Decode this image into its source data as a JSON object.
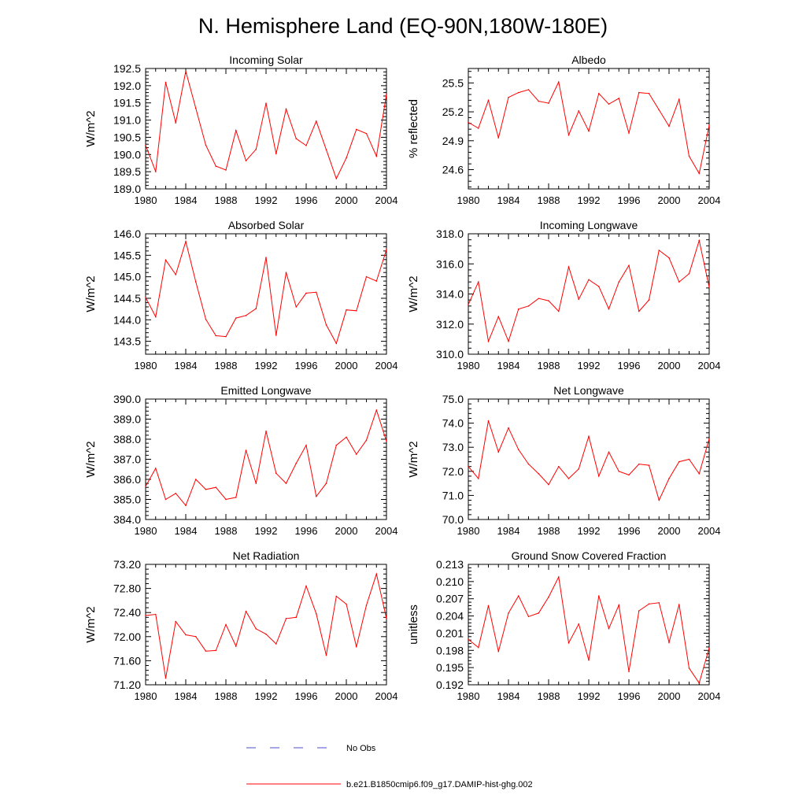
{
  "figure": {
    "title": "N. Hemisphere Land (EQ-90N,180W-180E)"
  },
  "legend": {
    "items": [
      {
        "label": "No Obs",
        "color": "#4d4dcc",
        "style": "dashed"
      },
      {
        "label": "b.e21.B1850cmip6.f09_g17.DAMIP-hist-ghg.002",
        "color": "#ff0000",
        "style": "solid"
      }
    ]
  },
  "chart_data": [
    {
      "type": "line",
      "title": "Incoming Solar",
      "xlabel": "",
      "ylabel": "W/m^2",
      "xlim": [
        1980,
        2004
      ],
      "ylim": [
        189.0,
        192.5
      ],
      "xticks": [
        1980,
        1984,
        1988,
        1992,
        1996,
        2000,
        2004
      ],
      "yticks": [
        "189.0",
        "189.5",
        "190.0",
        "190.5",
        "191.0",
        "191.5",
        "192.0",
        "192.5"
      ],
      "x": [
        1980,
        1981,
        1982,
        1983,
        1984,
        1985,
        1986,
        1987,
        1988,
        1989,
        1990,
        1991,
        1992,
        1993,
        1994,
        1995,
        1996,
        1997,
        1998,
        1999,
        2000,
        2001,
        2002,
        2003,
        2004
      ],
      "series": [
        {
          "color": "#ff0000",
          "values": [
            190.27,
            189.5,
            192.1,
            190.92,
            192.42,
            191.34,
            190.27,
            189.66,
            189.55,
            190.7,
            189.82,
            190.15,
            191.49,
            190.02,
            191.32,
            190.46,
            190.26,
            190.97,
            190.14,
            189.3,
            189.9,
            190.73,
            190.61,
            189.95,
            191.75
          ]
        }
      ]
    },
    {
      "type": "line",
      "title": "Albedo",
      "xlabel": "",
      "ylabel": "% reflected",
      "xlim": [
        1980,
        2004
      ],
      "ylim": [
        24.4,
        25.65
      ],
      "xticks": [
        1980,
        1984,
        1988,
        1992,
        1996,
        2000,
        2004
      ],
      "yticks": [
        "24.6",
        "24.9",
        "25.2",
        "25.5"
      ],
      "x": [
        1980,
        1981,
        1982,
        1983,
        1984,
        1985,
        1986,
        1987,
        1988,
        1989,
        1990,
        1991,
        1992,
        1993,
        1994,
        1995,
        1996,
        1997,
        1998,
        1999,
        2000,
        2001,
        2002,
        2003,
        2004
      ],
      "series": [
        {
          "color": "#ff0000",
          "values": [
            25.09,
            25.03,
            25.32,
            24.93,
            25.35,
            25.4,
            25.43,
            25.31,
            25.29,
            25.51,
            24.96,
            25.21,
            25.0,
            25.39,
            25.28,
            25.34,
            24.98,
            25.4,
            25.39,
            25.22,
            25.05,
            25.33,
            24.74,
            24.56,
            25.06
          ]
        }
      ]
    },
    {
      "type": "line",
      "title": "Absorbed Solar",
      "xlabel": "",
      "ylabel": "W/m^2",
      "xlim": [
        1980,
        2004
      ],
      "ylim": [
        143.2,
        146.0
      ],
      "xticks": [
        1980,
        1984,
        1988,
        1992,
        1996,
        2000,
        2004
      ],
      "yticks": [
        "143.5",
        "144.0",
        "144.5",
        "145.0",
        "145.5",
        "146.0"
      ],
      "x": [
        1980,
        1981,
        1982,
        1983,
        1984,
        1985,
        1986,
        1987,
        1988,
        1989,
        1990,
        1991,
        1992,
        1993,
        1994,
        1995,
        1996,
        1997,
        1998,
        1999,
        2000,
        2001,
        2002,
        2003,
        2004
      ],
      "series": [
        {
          "color": "#ff0000",
          "values": [
            144.52,
            144.07,
            145.39,
            145.05,
            145.82,
            144.88,
            144.01,
            143.63,
            143.61,
            144.04,
            144.1,
            144.26,
            145.45,
            143.64,
            145.1,
            144.3,
            144.62,
            144.64,
            143.88,
            143.45,
            144.23,
            144.21,
            145.0,
            144.9,
            145.63
          ]
        }
      ]
    },
    {
      "type": "line",
      "title": "Incoming Longwave",
      "xlabel": "",
      "ylabel": "W/m^2",
      "xlim": [
        1980,
        2004
      ],
      "ylim": [
        310.0,
        318.0
      ],
      "xticks": [
        1980,
        1984,
        1988,
        1992,
        1996,
        2000,
        2004
      ],
      "yticks": [
        "310.0",
        "312.0",
        "314.0",
        "316.0",
        "318.0"
      ],
      "x": [
        1980,
        1981,
        1982,
        1983,
        1984,
        1985,
        1986,
        1987,
        1988,
        1989,
        1990,
        1991,
        1992,
        1993,
        1994,
        1995,
        1996,
        1997,
        1998,
        1999,
        2000,
        2001,
        2002,
        2003,
        2004
      ],
      "series": [
        {
          "color": "#ff0000",
          "values": [
            313.3,
            314.8,
            310.85,
            312.5,
            310.85,
            313.0,
            313.2,
            313.7,
            313.55,
            312.85,
            315.8,
            313.65,
            314.95,
            314.5,
            313.0,
            314.8,
            315.9,
            312.85,
            313.6,
            316.9,
            316.4,
            314.8,
            315.35,
            317.55,
            314.45
          ]
        }
      ]
    },
    {
      "type": "line",
      "title": "Emitted Longwave",
      "xlabel": "",
      "ylabel": "W/m^2",
      "xlim": [
        1980,
        2004
      ],
      "ylim": [
        384.0,
        390.0
      ],
      "xticks": [
        1980,
        1984,
        1988,
        1992,
        1996,
        2000,
        2004
      ],
      "yticks": [
        "384.0",
        "385.0",
        "386.0",
        "387.0",
        "388.0",
        "389.0",
        "390.0"
      ],
      "x": [
        1980,
        1981,
        1982,
        1983,
        1984,
        1985,
        1986,
        1987,
        1988,
        1989,
        1990,
        1991,
        1992,
        1993,
        1994,
        1995,
        1996,
        1997,
        1998,
        1999,
        2000,
        2001,
        2002,
        2003,
        2004
      ],
      "series": [
        {
          "color": "#ff0000",
          "values": [
            385.65,
            386.55,
            385.0,
            385.3,
            384.7,
            386.0,
            385.5,
            385.6,
            385.0,
            385.1,
            387.45,
            385.8,
            388.4,
            386.3,
            385.8,
            386.8,
            387.7,
            385.15,
            385.8,
            387.7,
            388.1,
            387.25,
            387.95,
            389.45,
            387.9
          ]
        }
      ]
    },
    {
      "type": "line",
      "title": "Net Longwave",
      "xlabel": "",
      "ylabel": "W/m^2",
      "xlim": [
        1980,
        2004
      ],
      "ylim": [
        70.0,
        75.0
      ],
      "xticks": [
        1980,
        1984,
        1988,
        1992,
        1996,
        2000,
        2004
      ],
      "yticks": [
        "70.0",
        "71.0",
        "72.0",
        "73.0",
        "74.0",
        "75.0"
      ],
      "x": [
        1980,
        1981,
        1982,
        1983,
        1984,
        1985,
        1986,
        1987,
        1988,
        1989,
        1990,
        1991,
        1992,
        1993,
        1994,
        1995,
        1996,
        1997,
        1998,
        1999,
        2000,
        2001,
        2002,
        2003,
        2004
      ],
      "series": [
        {
          "color": "#ff0000",
          "values": [
            72.2,
            71.7,
            74.1,
            72.8,
            73.8,
            72.9,
            72.3,
            71.9,
            71.45,
            72.2,
            71.7,
            72.1,
            73.45,
            71.8,
            72.8,
            72.0,
            71.85,
            72.3,
            72.25,
            70.8,
            71.7,
            72.4,
            72.5,
            71.9,
            73.35
          ]
        }
      ]
    },
    {
      "type": "line",
      "title": "Net Radiation",
      "xlabel": "",
      "ylabel": "W/m^2",
      "xlim": [
        1980,
        2004
      ],
      "ylim": [
        71.2,
        73.2
      ],
      "xticks": [
        1980,
        1984,
        1988,
        1992,
        1996,
        2000,
        2004
      ],
      "yticks": [
        "71.20",
        "71.60",
        "72.00",
        "72.40",
        "72.80",
        "73.20"
      ],
      "x": [
        1980,
        1981,
        1982,
        1983,
        1984,
        1985,
        1986,
        1987,
        1988,
        1989,
        1990,
        1991,
        1992,
        1993,
        1994,
        1995,
        1996,
        1997,
        1998,
        1999,
        2000,
        2001,
        2002,
        2003,
        2004
      ],
      "series": [
        {
          "color": "#ff0000",
          "values": [
            72.35,
            72.37,
            71.31,
            72.25,
            72.03,
            72.0,
            71.76,
            71.77,
            72.2,
            71.84,
            72.42,
            72.13,
            72.04,
            71.88,
            72.3,
            72.32,
            72.84,
            72.38,
            71.69,
            72.67,
            72.54,
            71.83,
            72.52,
            73.04,
            72.3
          ]
        }
      ]
    },
    {
      "type": "line",
      "title": "Ground Snow Covered Fraction",
      "xlabel": "",
      "ylabel": "unitless",
      "xlim": [
        1980,
        2004
      ],
      "ylim": [
        0.192,
        0.213
      ],
      "xticks": [
        1980,
        1984,
        1988,
        1992,
        1996,
        2000,
        2004
      ],
      "yticks": [
        "0.192",
        "0.195",
        "0.198",
        "0.201",
        "0.204",
        "0.207",
        "0.210",
        "0.213"
      ],
      "x": [
        1980,
        1981,
        1982,
        1983,
        1984,
        1985,
        1986,
        1987,
        1988,
        1989,
        1990,
        1991,
        1992,
        1993,
        1994,
        1995,
        1996,
        1997,
        1998,
        1999,
        2000,
        2001,
        2002,
        2003,
        2004
      ],
      "series": [
        {
          "color": "#ff0000",
          "values": [
            0.1999,
            0.1985,
            0.2058,
            0.1978,
            0.2045,
            0.2075,
            0.2039,
            0.2045,
            0.2073,
            0.2108,
            0.1993,
            0.2026,
            0.1963,
            0.2075,
            0.2018,
            0.2059,
            0.1943,
            0.2049,
            0.2061,
            0.2063,
            0.1994,
            0.206,
            0.1949,
            0.1923,
            0.1984
          ]
        }
      ]
    }
  ]
}
